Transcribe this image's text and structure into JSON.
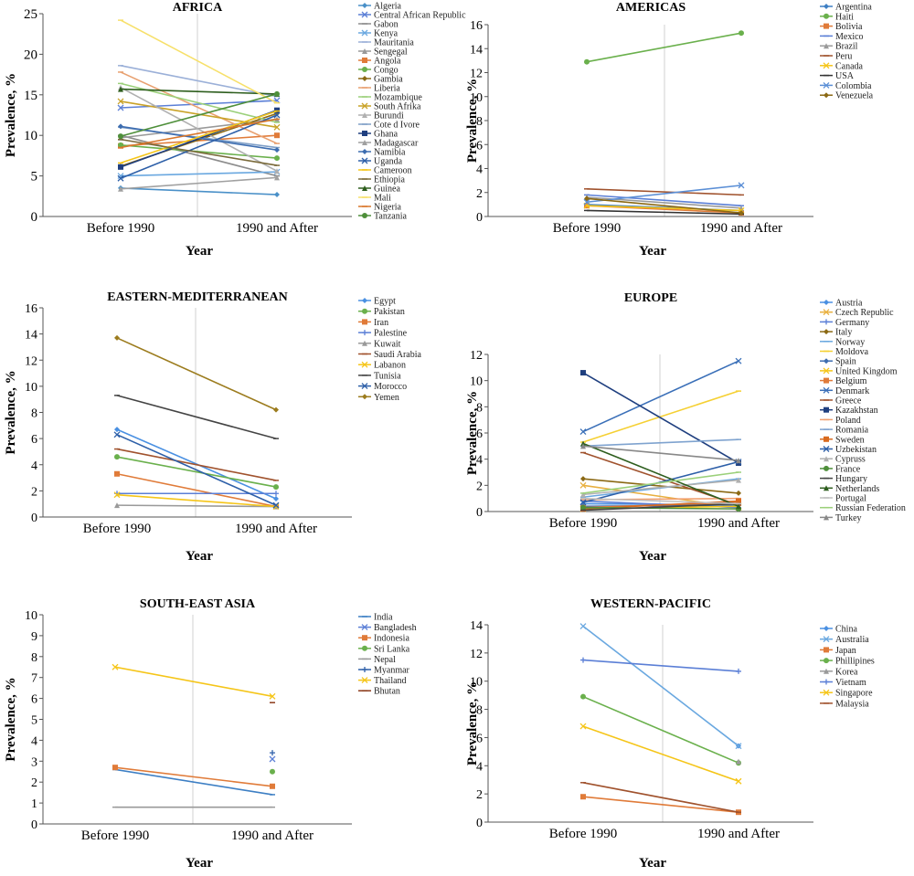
{
  "chart_data": [
    {
      "type": "line",
      "title": "AFRICA",
      "xlabel": "Year",
      "ylabel": "Prevalence, %",
      "categories": [
        "Before 1990",
        "1990 and After"
      ],
      "ylim": [
        0,
        25
      ],
      "yticks": [
        0,
        5,
        10,
        15,
        20,
        25
      ],
      "grid": false,
      "legend": "right",
      "series": [
        {
          "name": "Algeria",
          "color": "#4a90c8",
          "marker": "diamond",
          "values": [
            3.5,
            2.7
          ]
        },
        {
          "name": "Central African Republic",
          "color": "#5b7fd6",
          "marker": "x",
          "values": [
            13.4,
            14.3
          ]
        },
        {
          "name": "Gabon",
          "color": "#8c8c8c",
          "marker": "dash",
          "values": [
            10.0,
            5.0
          ]
        },
        {
          "name": "Kenya",
          "color": "#6aa8e0",
          "marker": "x",
          "values": [
            5.0,
            5.5
          ]
        },
        {
          "name": "Mauritania",
          "color": "#9bb0d8",
          "marker": "dash",
          "values": [
            18.6,
            14.8
          ]
        },
        {
          "name": "Sengegal",
          "color": "#999999",
          "marker": "triangle",
          "values": [
            9.7,
            12.0
          ]
        },
        {
          "name": "Angola",
          "color": "#e07b39",
          "marker": "square",
          "values": [
            8.7,
            10.0
          ]
        },
        {
          "name": "Congo",
          "color": "#6ab04c",
          "marker": "circle",
          "values": [
            8.8,
            7.2
          ]
        },
        {
          "name": "Gambia",
          "color": "#8b6914",
          "marker": "diamond",
          "values": [
            6.2,
            12.7
          ]
        },
        {
          "name": "Liberia",
          "color": "#e8a070",
          "marker": "dash",
          "values": [
            17.8,
            9.0
          ]
        },
        {
          "name": "Mozambique",
          "color": "#9bd07a",
          "marker": "dash",
          "values": [
            16.4,
            11.6
          ]
        },
        {
          "name": "South Afrika",
          "color": "#c9a227",
          "marker": "x",
          "values": [
            14.2,
            11.0
          ]
        },
        {
          "name": "Burundi",
          "color": "#b0b0b0",
          "marker": "triangle",
          "values": [
            15.9,
            5.6
          ]
        },
        {
          "name": "Cote d Ivore",
          "color": "#7f9fc7",
          "marker": "dash",
          "values": [
            11.0,
            8.5
          ]
        },
        {
          "name": "Ghana",
          "color": "#1f3f7f",
          "marker": "square",
          "values": [
            6.1,
            13.1
          ]
        },
        {
          "name": "Madagascar",
          "color": "#a0a0a0",
          "marker": "triangle",
          "values": [
            3.4,
            4.8
          ]
        },
        {
          "name": "Namibia",
          "color": "#3d6db0",
          "marker": "diamond",
          "values": [
            11.1,
            8.2
          ]
        },
        {
          "name": "Uganda",
          "color": "#2d5fa8",
          "marker": "x",
          "values": [
            4.7,
            12.5
          ]
        },
        {
          "name": "Cameroon",
          "color": "#f5c518",
          "marker": "dash",
          "values": [
            6.6,
            13.0
          ]
        },
        {
          "name": "Ethiopia",
          "color": "#7a6a3a",
          "marker": "dash",
          "values": [
            9.5,
            6.3
          ]
        },
        {
          "name": "Guinea",
          "color": "#2e5e1e",
          "marker": "triangle",
          "values": [
            15.7,
            15.1
          ]
        },
        {
          "name": "Mali",
          "color": "#f7e06a",
          "marker": "dash",
          "values": [
            24.2,
            14.0
          ]
        },
        {
          "name": "Nigeria",
          "color": "#d9772b",
          "marker": "dash",
          "values": [
            8.5,
            12.0
          ]
        },
        {
          "name": "Tanzania",
          "color": "#4e8f3a",
          "marker": "circle",
          "values": [
            9.9,
            15.1
          ]
        }
      ]
    },
    {
      "type": "line",
      "title": "AMERICAS",
      "xlabel": "Year",
      "ylabel": "Prevalence, %",
      "categories": [
        "Before 1990",
        "1990 and After"
      ],
      "ylim": [
        0,
        16
      ],
      "yticks": [
        0,
        2,
        4,
        6,
        8,
        10,
        12,
        14,
        16
      ],
      "grid": false,
      "legend": "right",
      "series": [
        {
          "name": "Argentina",
          "color": "#3d7fc4",
          "marker": "diamond",
          "values": [
            1.0,
            0.5
          ]
        },
        {
          "name": "Haiti",
          "color": "#6ab04c",
          "marker": "circle",
          "values": [
            12.9,
            15.3
          ]
        },
        {
          "name": "Bolivia",
          "color": "#e07b39",
          "marker": "square",
          "values": [
            0.9,
            0.3
          ]
        },
        {
          "name": "Mexico",
          "color": "#5b7fd6",
          "marker": "dash",
          "values": [
            1.8,
            0.9
          ]
        },
        {
          "name": "Brazil",
          "color": "#9a9a9a",
          "marker": "triangle",
          "values": [
            1.6,
            0.7
          ]
        },
        {
          "name": "Peru",
          "color": "#a0522d",
          "marker": "dash",
          "values": [
            2.3,
            1.8
          ]
        },
        {
          "name": "Canada",
          "color": "#f5c518",
          "marker": "x",
          "values": [
            0.9,
            0.5
          ]
        },
        {
          "name": "USA",
          "color": "#333333",
          "marker": "dash",
          "values": [
            0.5,
            0.2
          ]
        },
        {
          "name": "Colombia",
          "color": "#5b8fd6",
          "marker": "x",
          "values": [
            1.2,
            2.6
          ]
        },
        {
          "name": "Venezuela",
          "color": "#8b6914",
          "marker": "diamond",
          "values": [
            1.5,
            0.3
          ]
        }
      ]
    },
    {
      "type": "line",
      "title": "EASTERN-MEDITERRANEAN",
      "xlabel": "Year",
      "ylabel": "Prevalence, %",
      "categories": [
        "Before 1990",
        "1990 and After"
      ],
      "ylim": [
        0,
        16
      ],
      "yticks": [
        0,
        2,
        4,
        6,
        8,
        10,
        12,
        14,
        16
      ],
      "grid": false,
      "legend": "right",
      "series": [
        {
          "name": "Egypt",
          "color": "#4a90e2",
          "marker": "diamond",
          "values": [
            6.7,
            1.4
          ]
        },
        {
          "name": "Pakistan",
          "color": "#6ab04c",
          "marker": "circle",
          "values": [
            4.6,
            2.3
          ]
        },
        {
          "name": "Iran",
          "color": "#e07b39",
          "marker": "square",
          "values": [
            3.3,
            0.8
          ]
        },
        {
          "name": "Palestine",
          "color": "#5b7fd6",
          "marker": "plus",
          "values": [
            1.8,
            1.8
          ]
        },
        {
          "name": "Kuwait",
          "color": "#9a9a9a",
          "marker": "triangle",
          "values": [
            0.9,
            0.8
          ]
        },
        {
          "name": "Saudi Arabia",
          "color": "#a0522d",
          "marker": "dash",
          "values": [
            5.2,
            2.8
          ]
        },
        {
          "name": "Labanon",
          "color": "#f5c518",
          "marker": "x",
          "values": [
            1.7,
            0.8
          ]
        },
        {
          "name": "Tunisia",
          "color": "#444444",
          "marker": "dash",
          "values": [
            9.3,
            6.0
          ]
        },
        {
          "name": "Morocco",
          "color": "#2d5fa8",
          "marker": "x",
          "values": [
            6.3,
            0.9
          ]
        },
        {
          "name": "Yemen",
          "color": "#9c7c1e",
          "marker": "diamond",
          "values": [
            13.7,
            8.2
          ]
        }
      ]
    },
    {
      "type": "line",
      "title": "EUROPE",
      "xlabel": "Year",
      "ylabel": "Prevalence, %",
      "categories": [
        "Before 1990",
        "1990 and After"
      ],
      "ylim": [
        0,
        12
      ],
      "yticks": [
        0,
        2,
        4,
        6,
        8,
        10,
        12
      ],
      "grid": false,
      "legend": "right",
      "series": [
        {
          "name": "Austria",
          "color": "#4a90e2",
          "marker": "diamond",
          "values": [
            0.6,
            0.5
          ]
        },
        {
          "name": "Czech Republic",
          "color": "#e8b040",
          "marker": "x",
          "values": [
            2.0,
            0.3
          ]
        },
        {
          "name": "Germany",
          "color": "#5b7fd6",
          "marker": "plus",
          "values": [
            0.8,
            0.3
          ]
        },
        {
          "name": "Italy",
          "color": "#8b6914",
          "marker": "diamond",
          "values": [
            2.5,
            1.4
          ]
        },
        {
          "name": "Norway",
          "color": "#6aa8e0",
          "marker": "dash",
          "values": [
            1.1,
            2.5
          ]
        },
        {
          "name": "Moldova",
          "color": "#f5d033",
          "marker": "dash",
          "values": [
            5.3,
            9.2
          ]
        },
        {
          "name": "Spain",
          "color": "#3d6db0",
          "marker": "diamond",
          "values": [
            0.4,
            0.5
          ]
        },
        {
          "name": "United Kingdom",
          "color": "#f5c518",
          "marker": "x",
          "values": [
            0.2,
            0.4
          ]
        },
        {
          "name": "Belgium",
          "color": "#e07b39",
          "marker": "square",
          "values": [
            0.3,
            0.7
          ]
        },
        {
          "name": "Denmark",
          "color": "#3a6fb8",
          "marker": "x",
          "values": [
            6.1,
            11.5
          ]
        },
        {
          "name": "Greece",
          "color": "#a0522d",
          "marker": "dash",
          "values": [
            4.5,
            0.5
          ]
        },
        {
          "name": "Kazakhstan",
          "color": "#1f3f7f",
          "marker": "square",
          "values": [
            10.6,
            3.7
          ]
        },
        {
          "name": "Poland",
          "color": "#f0a070",
          "marker": "dash",
          "values": [
            0.9,
            1.0
          ]
        },
        {
          "name": "Romania",
          "color": "#7fa3cf",
          "marker": "dash",
          "values": [
            5.0,
            5.5
          ]
        },
        {
          "name": "Sweden",
          "color": "#d96a1e",
          "marker": "square",
          "values": [
            0.2,
            0.8
          ]
        },
        {
          "name": "Uzbekistan",
          "color": "#2d5fa8",
          "marker": "x",
          "values": [
            0.7,
            3.8
          ]
        },
        {
          "name": "Cypruss",
          "color": "#b0b0b0",
          "marker": "triangle",
          "values": [
            1.3,
            2.4
          ]
        },
        {
          "name": "France",
          "color": "#4e8f3a",
          "marker": "circle",
          "values": [
            0.3,
            0.2
          ]
        },
        {
          "name": "Hungary",
          "color": "#444444",
          "marker": "dash",
          "values": [
            0.1,
            0.6
          ]
        },
        {
          "name": "Netherlands",
          "color": "#2e5e1e",
          "marker": "triangle",
          "values": [
            5.2,
            0.4
          ]
        },
        {
          "name": "Portugal",
          "color": "#c0c0c0",
          "marker": "dash",
          "values": [
            1.0,
            0.6
          ]
        },
        {
          "name": "Russian Federation",
          "color": "#9bd07a",
          "marker": "dash",
          "values": [
            1.4,
            3.0
          ]
        },
        {
          "name": "Turkey",
          "color": "#888888",
          "marker": "triangle",
          "values": [
            5.0,
            3.9
          ]
        }
      ]
    },
    {
      "type": "line",
      "title": "SOUTH-EAST ASIA",
      "xlabel": "Year",
      "ylabel": "Prevalence, %",
      "categories": [
        "Before 1990",
        "1990 and After"
      ],
      "ylim": [
        0,
        10
      ],
      "yticks": [
        0,
        1,
        2,
        3,
        4,
        5,
        6,
        7,
        8,
        9,
        10
      ],
      "grid": false,
      "legend": "right",
      "series": [
        {
          "name": "India",
          "color": "#3d7fc4",
          "marker": "dash",
          "values": [
            2.6,
            1.4
          ]
        },
        {
          "name": "Bangladesh",
          "color": "#5b7fd6",
          "marker": "x",
          "values": [
            null,
            3.1
          ]
        },
        {
          "name": "Indonesia",
          "color": "#e07b39",
          "marker": "square",
          "values": [
            2.7,
            1.8
          ]
        },
        {
          "name": "Sri Lanka",
          "color": "#6ab04c",
          "marker": "circle",
          "values": [
            null,
            2.5
          ]
        },
        {
          "name": "Nepal",
          "color": "#9a9a9a",
          "marker": "dash",
          "values": [
            0.8,
            0.8
          ]
        },
        {
          "name": "Myanmar",
          "color": "#2d5fa8",
          "marker": "plus",
          "values": [
            null,
            3.4
          ]
        },
        {
          "name": "Thailand",
          "color": "#f5c518",
          "marker": "x",
          "values": [
            7.5,
            6.1
          ]
        },
        {
          "name": "Bhutan",
          "color": "#8b3a1a",
          "marker": "dash",
          "values": [
            null,
            5.8
          ]
        }
      ]
    },
    {
      "type": "line",
      "title": "WESTERN-PACIFIC",
      "xlabel": "Year",
      "ylabel": "Prevalence, %",
      "categories": [
        "Before 1990",
        "1990 and After"
      ],
      "ylim": [
        0,
        14
      ],
      "yticks": [
        0,
        2,
        4,
        6,
        8,
        10,
        12,
        14
      ],
      "grid": false,
      "legend": "right",
      "series": [
        {
          "name": "China",
          "color": "#4a90e2",
          "marker": "diamond",
          "values": [
            null,
            5.4
          ]
        },
        {
          "name": "Australia",
          "color": "#6aa8e0",
          "marker": "x",
          "values": [
            13.9,
            5.4
          ]
        },
        {
          "name": "Japan",
          "color": "#e07b39",
          "marker": "square",
          "values": [
            1.8,
            0.7
          ]
        },
        {
          "name": "Phillipines",
          "color": "#6ab04c",
          "marker": "circle",
          "values": [
            8.9,
            4.2
          ]
        },
        {
          "name": "Korea",
          "color": "#9a9a9a",
          "marker": "triangle",
          "values": [
            null,
            4.3
          ]
        },
        {
          "name": "Vietnam",
          "color": "#5b7fd6",
          "marker": "plus",
          "values": [
            11.5,
            10.7
          ]
        },
        {
          "name": "Singapore",
          "color": "#f5c518",
          "marker": "x",
          "values": [
            6.8,
            2.9
          ]
        },
        {
          "name": "Malaysia",
          "color": "#a0522d",
          "marker": "dash",
          "values": [
            2.8,
            0.7
          ]
        }
      ]
    }
  ]
}
